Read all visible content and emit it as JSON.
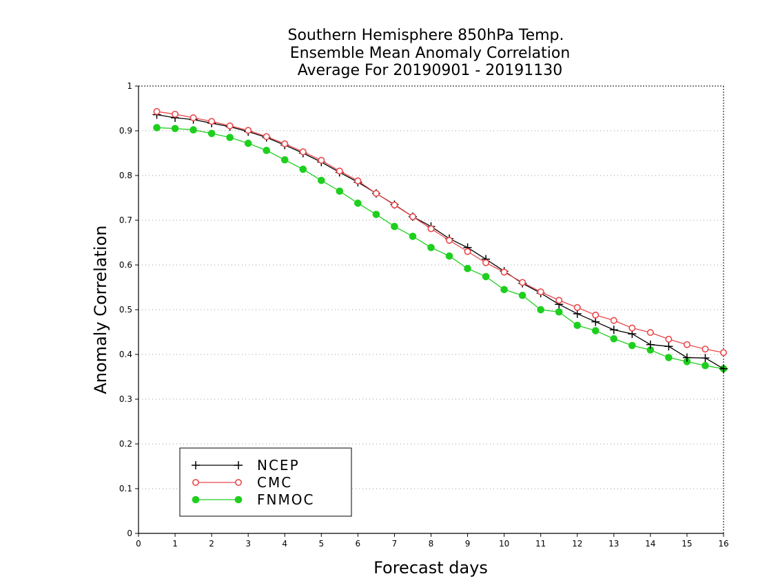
{
  "chart_data": {
    "type": "line",
    "title": [
      "Southern Hemisphere 850hPa Temp.",
      "Ensemble Mean Anomaly Correlation",
      "Average For 20190901 - 20191130"
    ],
    "xlabel": "Forecast days",
    "ylabel": "Anomaly Correlation",
    "xlim": [
      0,
      16
    ],
    "ylim": [
      0,
      1
    ],
    "x_ticks": [
      "0",
      "1",
      "2",
      "3",
      "4",
      "5",
      "6",
      "7",
      "8",
      "9",
      "10",
      "11",
      "12",
      "13",
      "14",
      "15",
      "16"
    ],
    "y_ticks": [
      "0",
      "0.1",
      "0.2",
      "0.3",
      "0.4",
      "0.5",
      "0.6",
      "0.7",
      "0.8",
      "0.9",
      "1"
    ],
    "grid": "horizontal-dotted",
    "legend_position": "bottom-left",
    "x": [
      0.5,
      1,
      1.5,
      2,
      2.5,
      3,
      3.5,
      4,
      4.5,
      5,
      5.5,
      6,
      6.5,
      7,
      7.5,
      8,
      8.5,
      9,
      9.5,
      10,
      10.5,
      11,
      11.5,
      12,
      12.5,
      13,
      13.5,
      14,
      14.5,
      15,
      15.5,
      16
    ],
    "series": [
      {
        "name": "NCEP",
        "color": "#000000",
        "marker": "plus",
        "values": [
          0.936,
          0.929,
          0.925,
          0.917,
          0.909,
          0.898,
          0.885,
          0.868,
          0.85,
          0.83,
          0.807,
          0.785,
          0.76,
          0.735,
          0.708,
          0.686,
          0.659,
          0.639,
          0.613,
          0.586,
          0.559,
          0.537,
          0.512,
          0.491,
          0.473,
          0.455,
          0.446,
          0.422,
          0.418,
          0.393,
          0.392,
          0.368
        ]
      },
      {
        "name": "CMC",
        "color": "#e8474a",
        "marker": "open-circle",
        "values": [
          0.943,
          0.937,
          0.929,
          0.921,
          0.911,
          0.901,
          0.887,
          0.871,
          0.853,
          0.834,
          0.81,
          0.788,
          0.76,
          0.734,
          0.708,
          0.681,
          0.655,
          0.63,
          0.605,
          0.584,
          0.561,
          0.54,
          0.521,
          0.505,
          0.488,
          0.476,
          0.459,
          0.449,
          0.434,
          0.422,
          0.412,
          0.404
        ]
      },
      {
        "name": "FNMOC",
        "color": "#1ecf1e",
        "marker": "filled-circle",
        "values": [
          0.907,
          0.905,
          0.902,
          0.894,
          0.885,
          0.872,
          0.856,
          0.835,
          0.814,
          0.789,
          0.765,
          0.738,
          0.713,
          0.686,
          0.664,
          0.639,
          0.62,
          0.592,
          0.574,
          0.545,
          0.532,
          0.5,
          0.495,
          0.465,
          0.453,
          0.435,
          0.42,
          0.41,
          0.393,
          0.384,
          0.375,
          0.368
        ]
      }
    ]
  }
}
